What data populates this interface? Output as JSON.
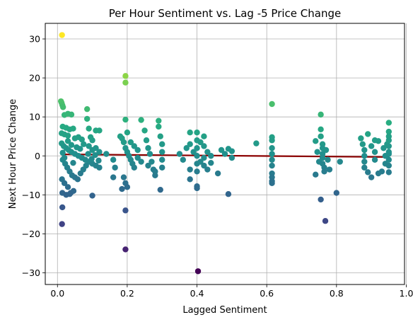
{
  "chart_data": {
    "type": "scatter",
    "title": "Per Hour Sentiment vs. Lag -5 Price Change",
    "xlabel": "Lagged Sentiment",
    "ylabel": "Next Hour Price Change",
    "xlim": [
      -0.035,
      0.995
    ],
    "ylim": [
      -33,
      34
    ],
    "xticks": [
      0.0,
      0.2,
      0.4,
      0.6,
      0.8,
      1.0
    ],
    "xtick_labels": [
      "0.0",
      "0.2",
      "0.4",
      "0.6",
      "0.8",
      "1.0"
    ],
    "yticks": [
      -30,
      -20,
      -10,
      0,
      10,
      20,
      30
    ],
    "ytick_labels": [
      "−30",
      "−20",
      "−10",
      "0",
      "10",
      "20",
      "30"
    ],
    "grid": true,
    "colormap": "viridis",
    "color_encoding": "y",
    "color_range": [
      -30,
      31
    ],
    "trendline": {
      "x": [
        0.01,
        0.95
      ],
      "y": [
        0.4,
        -0.3
      ],
      "color": "#8b0000"
    },
    "series": [
      {
        "points": [
          [
            0.013,
            31.0
          ],
          [
            0.01,
            14.0
          ],
          [
            0.012,
            13.6
          ],
          [
            0.014,
            13.0
          ],
          [
            0.016,
            12.5
          ],
          [
            0.02,
            10.5
          ],
          [
            0.03,
            10.8
          ],
          [
            0.04,
            10.6
          ],
          [
            0.015,
            7.5
          ],
          [
            0.025,
            7.2
          ],
          [
            0.035,
            6.8
          ],
          [
            0.045,
            7.0
          ],
          [
            0.012,
            5.8
          ],
          [
            0.02,
            5.5
          ],
          [
            0.03,
            5.2
          ],
          [
            0.05,
            4.5
          ],
          [
            0.06,
            4.8
          ],
          [
            0.07,
            4.2
          ],
          [
            0.085,
            12.0
          ],
          [
            0.085,
            9.5
          ],
          [
            0.09,
            7.0
          ],
          [
            0.1,
            4.0
          ],
          [
            0.11,
            6.5
          ],
          [
            0.12,
            6.5
          ],
          [
            0.095,
            4.8
          ],
          [
            0.012,
            3.2
          ],
          [
            0.018,
            2.5
          ],
          [
            0.025,
            2.0
          ],
          [
            0.032,
            1.5
          ],
          [
            0.04,
            1.0
          ],
          [
            0.05,
            0.5
          ],
          [
            0.06,
            0.0
          ],
          [
            0.07,
            -0.5
          ],
          [
            0.08,
            -1.0
          ],
          [
            0.09,
            -1.5
          ],
          [
            0.1,
            -2.0
          ],
          [
            0.11,
            -2.5
          ],
          [
            0.12,
            -3.0
          ],
          [
            0.015,
            -1.0
          ],
          [
            0.022,
            -2.0
          ],
          [
            0.028,
            -3.0
          ],
          [
            0.035,
            -4.0
          ],
          [
            0.042,
            -5.0
          ],
          [
            0.05,
            -5.5
          ],
          [
            0.058,
            -6.0
          ],
          [
            0.066,
            -4.5
          ],
          [
            0.074,
            -3.5
          ],
          [
            0.082,
            -2.5
          ],
          [
            0.09,
            2.5
          ],
          [
            0.1,
            1.5
          ],
          [
            0.11,
            2.0
          ],
          [
            0.12,
            1.0
          ],
          [
            0.013,
            -6.0
          ],
          [
            0.02,
            -7.0
          ],
          [
            0.03,
            -8.0
          ],
          [
            0.038,
            -9.5
          ],
          [
            0.046,
            -9.0
          ],
          [
            0.014,
            -9.5
          ],
          [
            0.014,
            -13.2
          ],
          [
            0.013,
            -17.5
          ],
          [
            0.025,
            -10.0
          ],
          [
            0.035,
            -9.8
          ],
          [
            0.1,
            -10.2
          ],
          [
            0.015,
            0.8
          ],
          [
            0.02,
            -0.5
          ],
          [
            0.03,
            3.8
          ],
          [
            0.04,
            2.8
          ],
          [
            0.045,
            -1.8
          ],
          [
            0.055,
            2.2
          ],
          [
            0.065,
            1.8
          ],
          [
            0.075,
            3.0
          ],
          [
            0.088,
            0.5
          ],
          [
            0.098,
            -0.8
          ],
          [
            0.108,
            0.2
          ],
          [
            0.118,
            -1.2
          ],
          [
            0.14,
            0.5
          ],
          [
            0.16,
            -1.0
          ],
          [
            0.165,
            -3.0
          ],
          [
            0.16,
            -5.5
          ],
          [
            0.18,
            5.0
          ],
          [
            0.185,
            4.5
          ],
          [
            0.19,
            3.5
          ],
          [
            0.195,
            2.0
          ],
          [
            0.2,
            1.0
          ],
          [
            0.205,
            0.0
          ],
          [
            0.21,
            -1.0
          ],
          [
            0.215,
            -2.0
          ],
          [
            0.22,
            -3.0
          ],
          [
            0.19,
            -5.5
          ],
          [
            0.195,
            -7.0
          ],
          [
            0.2,
            -8.0
          ],
          [
            0.185,
            -8.5
          ],
          [
            0.195,
            -14.0
          ],
          [
            0.195,
            -24.0
          ],
          [
            0.195,
            20.5
          ],
          [
            0.195,
            18.8
          ],
          [
            0.195,
            9.3
          ],
          [
            0.2,
            6.0
          ],
          [
            0.21,
            3.5
          ],
          [
            0.22,
            2.5
          ],
          [
            0.23,
            1.5
          ],
          [
            0.24,
            9.2
          ],
          [
            0.25,
            6.5
          ],
          [
            0.255,
            4.0
          ],
          [
            0.26,
            2.0
          ],
          [
            0.265,
            0.5
          ],
          [
            0.27,
            -1.5
          ],
          [
            0.275,
            -3.5
          ],
          [
            0.28,
            -5.0
          ],
          [
            0.29,
            9.0
          ],
          [
            0.29,
            7.5
          ],
          [
            0.295,
            5.0
          ],
          [
            0.3,
            3.0
          ],
          [
            0.3,
            1.0
          ],
          [
            0.3,
            -1.0
          ],
          [
            0.3,
            -3.0
          ],
          [
            0.295,
            -8.7
          ],
          [
            0.28,
            -4.0
          ],
          [
            0.26,
            -2.5
          ],
          [
            0.24,
            -1.5
          ],
          [
            0.23,
            -0.5
          ],
          [
            0.35,
            0.5
          ],
          [
            0.36,
            -1.0
          ],
          [
            0.37,
            2.0
          ],
          [
            0.38,
            3.0
          ],
          [
            0.38,
            6.0
          ],
          [
            0.38,
            -3.5
          ],
          [
            0.38,
            -6.0
          ],
          [
            0.39,
            1.0
          ],
          [
            0.4,
            6.0
          ],
          [
            0.4,
            4.0
          ],
          [
            0.4,
            2.0
          ],
          [
            0.4,
            0.0
          ],
          [
            0.4,
            -2.0
          ],
          [
            0.4,
            -4.0
          ],
          [
            0.4,
            -7.8
          ],
          [
            0.4,
            -8.3
          ],
          [
            0.403,
            -29.6
          ],
          [
            0.41,
            3.5
          ],
          [
            0.41,
            -1.5
          ],
          [
            0.42,
            5.0
          ],
          [
            0.42,
            2.5
          ],
          [
            0.42,
            -0.5
          ],
          [
            0.42,
            -2.5
          ],
          [
            0.43,
            1.0
          ],
          [
            0.43,
            -3.5
          ],
          [
            0.44,
            0.0
          ],
          [
            0.44,
            -1.8
          ],
          [
            0.46,
            -4.5
          ],
          [
            0.47,
            1.5
          ],
          [
            0.48,
            0.5
          ],
          [
            0.49,
            1.8
          ],
          [
            0.49,
            -9.8
          ],
          [
            0.5,
            -0.5
          ],
          [
            0.5,
            1.2
          ],
          [
            0.57,
            3.2
          ],
          [
            0.615,
            13.3
          ],
          [
            0.615,
            4.8
          ],
          [
            0.615,
            4.0
          ],
          [
            0.615,
            2.0
          ],
          [
            0.615,
            0.5
          ],
          [
            0.615,
            -1.0
          ],
          [
            0.615,
            -2.5
          ],
          [
            0.615,
            -4.5
          ],
          [
            0.615,
            -5.5
          ],
          [
            0.615,
            -6.5
          ],
          [
            0.615,
            -7.0
          ],
          [
            0.74,
            3.8
          ],
          [
            0.745,
            1.0
          ],
          [
            0.75,
            -1.5
          ],
          [
            0.74,
            -4.8
          ],
          [
            0.755,
            10.6
          ],
          [
            0.755,
            6.8
          ],
          [
            0.755,
            5.0
          ],
          [
            0.76,
            3.0
          ],
          [
            0.76,
            2.0
          ],
          [
            0.76,
            0.5
          ],
          [
            0.76,
            -0.5
          ],
          [
            0.76,
            -2.0
          ],
          [
            0.765,
            -3.0
          ],
          [
            0.765,
            -4.0
          ],
          [
            0.755,
            -11.2
          ],
          [
            0.768,
            -16.7
          ],
          [
            0.77,
            1.5
          ],
          [
            0.775,
            -1.0
          ],
          [
            0.78,
            -3.5
          ],
          [
            0.8,
            -9.5
          ],
          [
            0.81,
            -1.5
          ],
          [
            0.87,
            4.5
          ],
          [
            0.875,
            3.0
          ],
          [
            0.88,
            1.5
          ],
          [
            0.88,
            0.0
          ],
          [
            0.88,
            -1.5
          ],
          [
            0.88,
            -3.0
          ],
          [
            0.89,
            5.6
          ],
          [
            0.89,
            -4.2
          ],
          [
            0.9,
            2.5
          ],
          [
            0.9,
            -5.5
          ],
          [
            0.91,
            4.0
          ],
          [
            0.91,
            1.0
          ],
          [
            0.91,
            -1.0
          ],
          [
            0.92,
            3.8
          ],
          [
            0.92,
            -4.5
          ],
          [
            0.93,
            -4.0
          ],
          [
            0.935,
            2.0
          ],
          [
            0.94,
            0.0
          ],
          [
            0.94,
            -2.0
          ],
          [
            0.945,
            3.0
          ],
          [
            0.95,
            8.5
          ],
          [
            0.95,
            6.2
          ],
          [
            0.95,
            5.0
          ],
          [
            0.95,
            4.0
          ],
          [
            0.95,
            2.5
          ],
          [
            0.95,
            1.0
          ],
          [
            0.95,
            -1.0
          ],
          [
            0.95,
            -2.5
          ],
          [
            0.95,
            -4.2
          ],
          [
            0.95,
            0.5
          ]
        ]
      }
    ]
  }
}
